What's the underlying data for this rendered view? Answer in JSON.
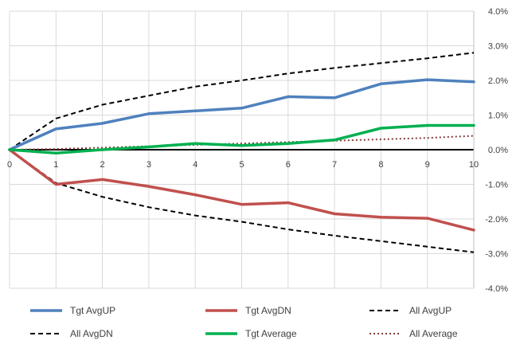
{
  "chart_data": {
    "type": "line",
    "title": "",
    "xlabel": "",
    "ylabel": "",
    "x": [
      0,
      1,
      2,
      3,
      4,
      5,
      6,
      7,
      8,
      9,
      10
    ],
    "xlim": [
      0,
      10
    ],
    "ylim": [
      -4.0,
      4.0
    ],
    "y_ticks": [
      4.0,
      3.0,
      2.0,
      1.0,
      0.0,
      -1.0,
      -2.0,
      -3.0,
      -4.0
    ],
    "y_tick_labels": [
      "4.0%",
      "3.0%",
      "2.0%",
      "1.0%",
      "0.0%",
      "-1.0%",
      "-2.0%",
      "-3.0%",
      "-4.0%"
    ],
    "x_tick_labels": [
      "0",
      "1",
      "2",
      "3",
      "4",
      "5",
      "6",
      "7",
      "8",
      "9",
      "10"
    ],
    "y_axis_side": "right",
    "grid": true,
    "legend_position": "bottom",
    "series": [
      {
        "name": "Tgt AvgUP",
        "color": "#4f81bd",
        "style": "solid",
        "values": [
          0.0,
          0.6,
          0.76,
          1.04,
          1.12,
          1.2,
          1.53,
          1.5,
          1.9,
          2.02,
          1.96
        ]
      },
      {
        "name": "Tgt AvgDN",
        "color": "#c0504d",
        "style": "solid",
        "values": [
          0.0,
          -1.0,
          -0.86,
          -1.06,
          -1.3,
          -1.58,
          -1.53,
          -1.85,
          -1.95,
          -1.98,
          -2.32
        ]
      },
      {
        "name": "All AvgUP",
        "color": "#000000",
        "style": "dashed",
        "values": [
          0.0,
          0.9,
          1.3,
          1.56,
          1.82,
          2.0,
          2.2,
          2.36,
          2.5,
          2.64,
          2.8
        ]
      },
      {
        "name": "All AvgDN",
        "color": "#000000",
        "style": "dashed",
        "values": [
          0.0,
          -0.96,
          -1.36,
          -1.66,
          -1.9,
          -2.08,
          -2.3,
          -2.48,
          -2.64,
          -2.8,
          -2.96
        ]
      },
      {
        "name": "Tgt Average",
        "color": "#00b050",
        "style": "solid",
        "values": [
          0.0,
          -0.1,
          0.0,
          0.08,
          0.18,
          0.12,
          0.18,
          0.28,
          0.62,
          0.7,
          0.7
        ]
      },
      {
        "name": "All Average",
        "color": "#843c39",
        "style": "dotted",
        "values": [
          0.0,
          0.02,
          0.06,
          0.1,
          0.14,
          0.18,
          0.22,
          0.26,
          0.3,
          0.34,
          0.4
        ]
      }
    ]
  }
}
